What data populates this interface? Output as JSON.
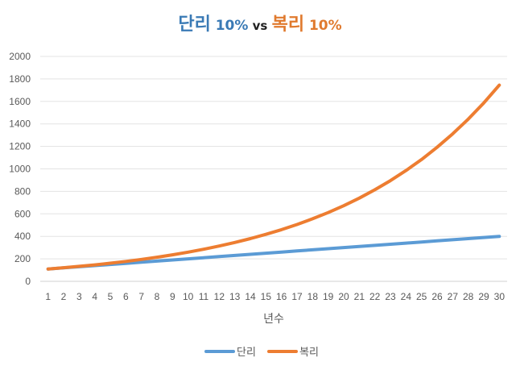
{
  "chart_data": {
    "type": "line",
    "title_parts": [
      {
        "text": "단리",
        "color": "#3a7ab5",
        "size": "big"
      },
      {
        "text": " 10%",
        "color": "#3a7ab5",
        "size": "mid"
      },
      {
        "text": " vs ",
        "color": "#222222",
        "size": "vs"
      },
      {
        "text": "복리",
        "color": "#e07a2e",
        "size": "big"
      },
      {
        "text": " 10%",
        "color": "#e07a2e",
        "size": "mid"
      }
    ],
    "xlabel": "년수",
    "x": [
      1,
      2,
      3,
      4,
      5,
      6,
      7,
      8,
      9,
      10,
      11,
      12,
      13,
      14,
      15,
      16,
      17,
      18,
      19,
      20,
      21,
      22,
      23,
      24,
      25,
      26,
      27,
      28,
      29,
      30
    ],
    "ylim": [
      0,
      2000
    ],
    "yticks": [
      0,
      200,
      400,
      600,
      800,
      1000,
      1200,
      1400,
      1600,
      1800,
      2000
    ],
    "grid": true,
    "legend_position": "bottom",
    "series": [
      {
        "name": "단리",
        "color": "#5b9bd5",
        "values": [
          110,
          120,
          130,
          140,
          150,
          160,
          170,
          180,
          190,
          200,
          210,
          220,
          230,
          240,
          250,
          260,
          270,
          280,
          290,
          300,
          310,
          320,
          330,
          340,
          350,
          360,
          370,
          380,
          390,
          400
        ]
      },
      {
        "name": "복리",
        "color": "#ed7d31",
        "values": [
          110,
          121,
          133.1,
          146.4,
          161.1,
          177.2,
          194.9,
          214.4,
          235.8,
          259.4,
          285.3,
          313.8,
          345.2,
          379.7,
          417.7,
          459.5,
          505.4,
          556.0,
          611.6,
          672.7,
          740.0,
          814.0,
          895.4,
          985.0,
          1083.5,
          1191.8,
          1311.0,
          1442.1,
          1586.3,
          1744.9
        ]
      }
    ]
  }
}
